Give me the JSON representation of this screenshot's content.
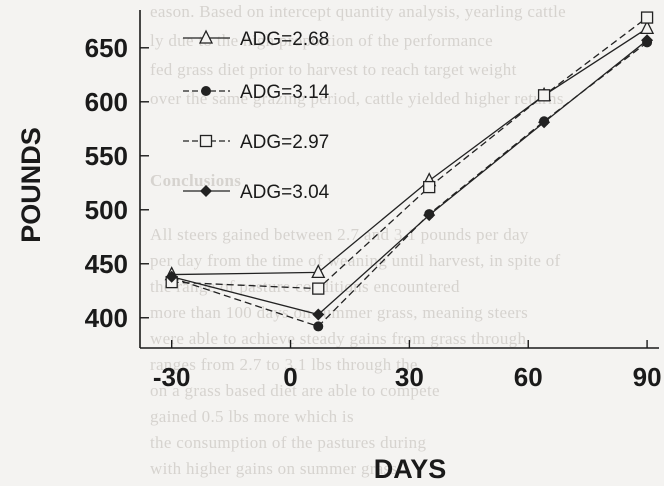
{
  "chart_data": {
    "type": "line",
    "xlabel": "DAYS",
    "ylabel": "POUNDS",
    "xlim": [
      -38,
      92
    ],
    "ylim": [
      372,
      685
    ],
    "xticks": [
      -30,
      0,
      30,
      60,
      90
    ],
    "yticks": [
      400,
      450,
      500,
      550,
      600,
      650
    ],
    "grid": false,
    "legend_position": "top-left",
    "series": [
      {
        "name": "ADG=2.68",
        "marker": "triangle-open",
        "line": "solid",
        "color": "#222222",
        "x": [
          -30,
          7,
          35,
          64,
          90
        ],
        "y": [
          440,
          442,
          527,
          606,
          668
        ]
      },
      {
        "name": "ADG=3.14",
        "marker": "circle-filled",
        "line": "dashed",
        "color": "#222222",
        "x": [
          -30,
          7,
          35,
          64,
          90
        ],
        "y": [
          437,
          392,
          496,
          582,
          655
        ]
      },
      {
        "name": "ADG=2.97",
        "marker": "square-open",
        "line": "dashed",
        "color": "#222222",
        "x": [
          -30,
          7,
          35,
          64,
          90
        ],
        "y": [
          433,
          427,
          521,
          606,
          678
        ]
      },
      {
        "name": "ADG=3.04",
        "marker": "diamond-filled",
        "line": "solid",
        "color": "#222222",
        "x": [
          -30,
          7,
          35,
          64,
          90
        ],
        "y": [
          438,
          403,
          495,
          581,
          657
        ]
      }
    ]
  },
  "background_text": [
    "eason. Based on intercept quantity analysis, yearling cattle",
    "ly due to the high proportion of the performance",
    "fed grass diet prior to harvest to reach target weight",
    "over the same grazing period, cattle yielded higher returns",
    "Conclusions",
    "All steers gained between 2.7 and 3.1 pounds per day",
    "per day from the time of weaning until harvest, in spite of",
    "the range of pasture conditions encountered",
    "more than 100 days on summer grass, meaning steers",
    "were able to achieve steady gains from grass through",
    "ranges from 2.7 to 3.1 lbs through the",
    "on a grass based diet are able to compete",
    "gained 0.5 lbs more which is",
    "the consumption of the pastures during",
    "with higher gains on summer grass"
  ]
}
